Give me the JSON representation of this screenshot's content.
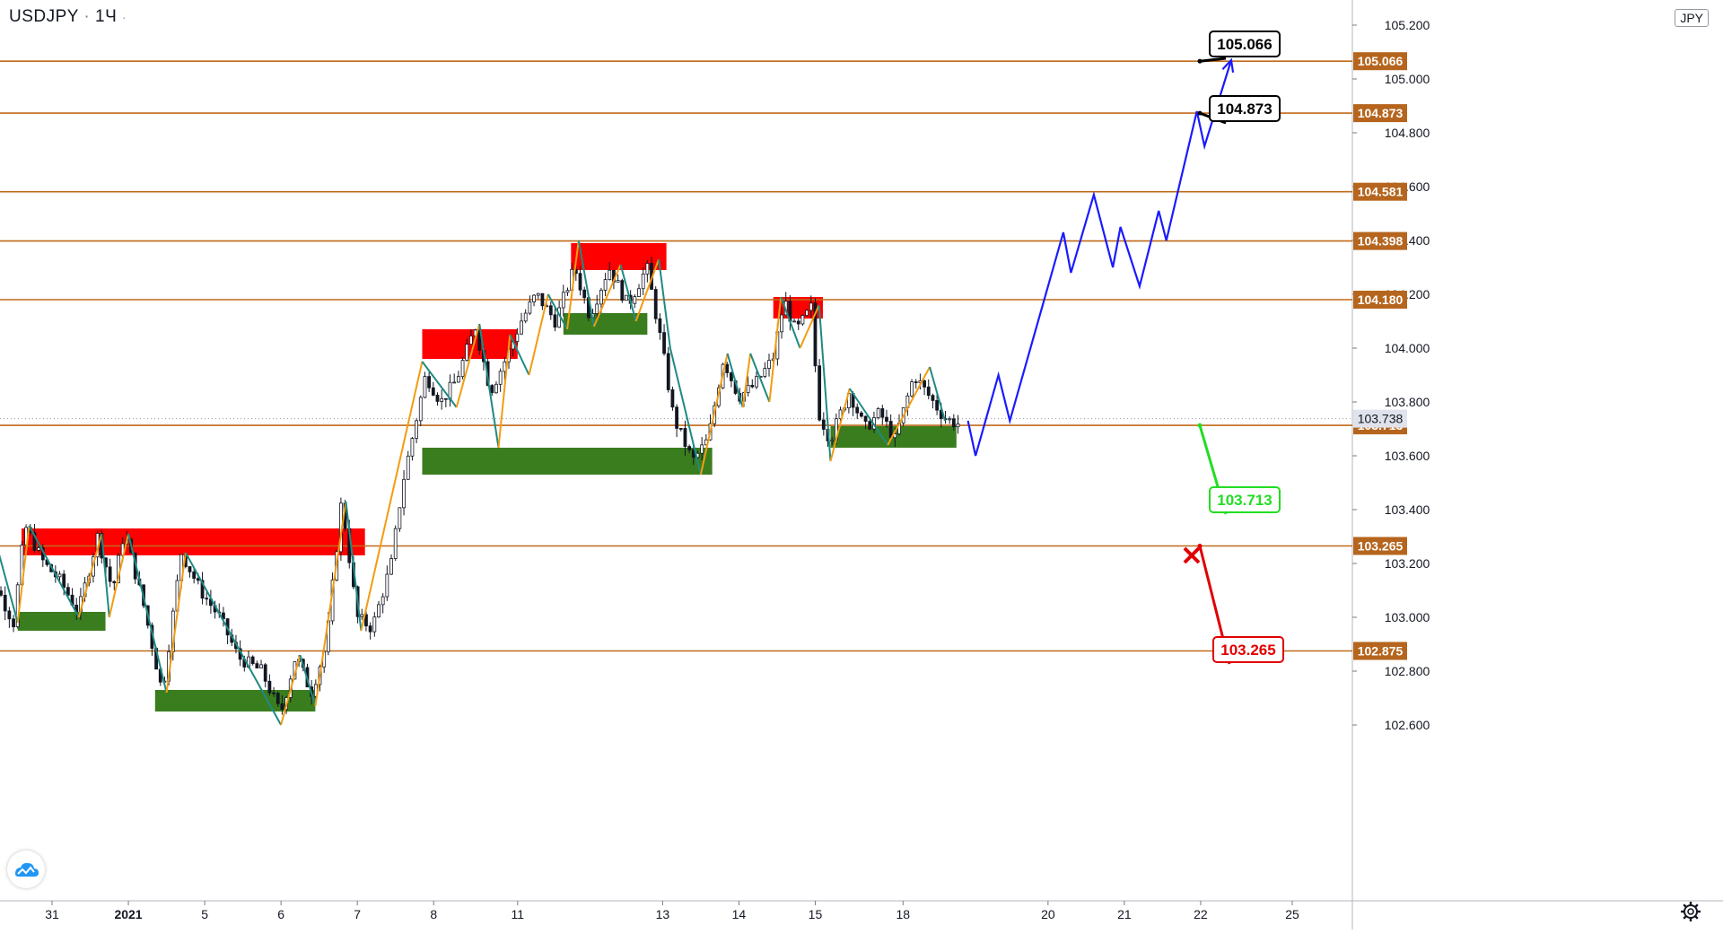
{
  "header": {
    "symbol": "USDJPY",
    "separator": "·",
    "interval": "1Ч"
  },
  "currency_badge": "JPY",
  "colors": {
    "level_line": "#c06a1a",
    "level_label_bg": "#b5651d",
    "supply_zone": "#ff0000",
    "demand_zone": "#3a7d1e",
    "forecast": "#1a1aff",
    "zigzag_up": "#f39c12",
    "zigzag_down": "#1e8a83",
    "candle": "#131722",
    "target_green": "#22dd22",
    "stop_red": "#e00000"
  },
  "icons": {
    "logo": "tradingview-cloud-icon",
    "settings": "gear-icon",
    "stop": "x-mark-icon"
  },
  "chart_data": {
    "type": "candlestick",
    "title": "USDJPY · 1Ч",
    "ylim": [
      102.58,
      105.25
    ],
    "yticks": [
      "105.200",
      "105.000",
      "104.800",
      "104.600",
      "104.400",
      "104.200",
      "104.000",
      "103.800",
      "103.600",
      "103.400",
      "103.200",
      "103.000",
      "102.800",
      "102.600"
    ],
    "xticks": [
      {
        "label": "31",
        "t": 0.95
      },
      {
        "label": "2021",
        "t": 1.95,
        "bold": true
      },
      {
        "label": "5",
        "t": 2.95
      },
      {
        "label": "6",
        "t": 3.95
      },
      {
        "label": "7",
        "t": 4.95
      },
      {
        "label": "8",
        "t": 5.95
      },
      {
        "label": "11",
        "t": 7.05
      },
      {
        "label": "13",
        "t": 8.95
      },
      {
        "label": "14",
        "t": 9.95
      },
      {
        "label": "15",
        "t": 10.95
      },
      {
        "label": "18",
        "t": 12.1
      },
      {
        "label": "20",
        "t": 14.0
      },
      {
        "label": "21",
        "t": 15.0
      },
      {
        "label": "22",
        "t": 16.0
      },
      {
        "label": "25",
        "t": 17.2
      }
    ],
    "levels": [
      {
        "price": 105.066,
        "label": "105.066"
      },
      {
        "price": 104.873,
        "label": "104.873"
      },
      {
        "price": 104.581,
        "label": "104.581"
      },
      {
        "price": 104.398,
        "label": "104.398"
      },
      {
        "price": 104.18,
        "label": "104.180"
      },
      {
        "price": 103.713,
        "label": "103.713"
      },
      {
        "price": 103.265,
        "label": "103.265"
      },
      {
        "price": 102.875,
        "label": "102.875"
      }
    ],
    "current_price": {
      "price": 103.738,
      "label": "103.738"
    },
    "zones": [
      {
        "type": "supply",
        "t0": 0.55,
        "t1": 5.05,
        "p0": 103.23,
        "p1": 103.33
      },
      {
        "type": "demand",
        "t0": 0.5,
        "t1": 1.65,
        "p0": 102.95,
        "p1": 103.02
      },
      {
        "type": "demand",
        "t0": 2.3,
        "t1": 4.4,
        "p0": 102.65,
        "p1": 102.73
      },
      {
        "type": "supply",
        "t0": 5.8,
        "t1": 7.05,
        "p0": 103.96,
        "p1": 104.07
      },
      {
        "type": "demand",
        "t0": 5.8,
        "t1": 9.6,
        "p0": 103.53,
        "p1": 103.63
      },
      {
        "type": "supply",
        "t0": 7.75,
        "t1": 9.0,
        "p0": 104.29,
        "p1": 104.39
      },
      {
        "type": "demand",
        "t0": 7.65,
        "t1": 8.75,
        "p0": 104.05,
        "p1": 104.13
      },
      {
        "type": "supply",
        "t0": 10.4,
        "t1": 11.05,
        "p0": 104.11,
        "p1": 104.19
      },
      {
        "type": "demand",
        "t0": 11.15,
        "t1": 12.8,
        "p0": 103.63,
        "p1": 103.71
      }
    ],
    "price_path": [
      [
        -0.05,
        103.3
      ],
      [
        0.3,
        103.1
      ],
      [
        0.5,
        102.98
      ],
      [
        0.65,
        103.34
      ],
      [
        0.9,
        103.2
      ],
      [
        1.1,
        103.14
      ],
      [
        1.35,
        103.02
      ],
      [
        1.6,
        103.3
      ],
      [
        1.8,
        103.1
      ],
      [
        1.95,
        103.32
      ],
      [
        2.2,
        103.05
      ],
      [
        2.45,
        102.72
      ],
      [
        2.7,
        103.24
      ],
      [
        2.95,
        103.1
      ],
      [
        3.2,
        103.0
      ],
      [
        3.45,
        102.85
      ],
      [
        3.75,
        102.8
      ],
      [
        4.0,
        102.64
      ],
      [
        4.2,
        102.86
      ],
      [
        4.4,
        102.72
      ],
      [
        4.6,
        102.9
      ],
      [
        4.8,
        103.44
      ],
      [
        5.0,
        103.0
      ],
      [
        5.2,
        102.96
      ],
      [
        5.45,
        103.2
      ],
      [
        5.6,
        103.5
      ],
      [
        5.75,
        103.7
      ],
      [
        5.9,
        103.9
      ],
      [
        6.1,
        103.8
      ],
      [
        6.3,
        103.88
      ],
      [
        6.55,
        104.08
      ],
      [
        6.75,
        103.84
      ],
      [
        6.95,
        103.96
      ],
      [
        7.15,
        104.1
      ],
      [
        7.35,
        104.2
      ],
      [
        7.6,
        104.1
      ],
      [
        7.85,
        104.3
      ],
      [
        8.05,
        104.12
      ],
      [
        8.3,
        104.3
      ],
      [
        8.55,
        104.16
      ],
      [
        8.8,
        104.3
      ],
      [
        9.0,
        104.0
      ],
      [
        9.15,
        103.74
      ],
      [
        9.4,
        103.58
      ],
      [
        9.6,
        103.66
      ],
      [
        9.8,
        103.96
      ],
      [
        10.0,
        103.82
      ],
      [
        10.2,
        103.86
      ],
      [
        10.45,
        103.96
      ],
      [
        10.6,
        104.18
      ],
      [
        10.75,
        104.06
      ],
      [
        10.95,
        104.15
      ],
      [
        11.05,
        103.76
      ],
      [
        11.2,
        103.66
      ],
      [
        11.45,
        103.84
      ],
      [
        11.65,
        103.7
      ],
      [
        11.85,
        103.76
      ],
      [
        12.05,
        103.66
      ],
      [
        12.3,
        103.9
      ],
      [
        12.5,
        103.82
      ],
      [
        12.7,
        103.74
      ],
      [
        12.85,
        103.72
      ]
    ],
    "zigzag": [
      [
        0.0,
        103.5
      ],
      [
        0.5,
        102.98
      ],
      [
        0.65,
        103.34
      ],
      [
        1.3,
        103.0
      ],
      [
        1.6,
        103.31
      ],
      [
        1.7,
        103.0
      ],
      [
        1.95,
        103.31
      ],
      [
        2.45,
        102.72
      ],
      [
        2.7,
        103.24
      ],
      [
        3.95,
        102.6
      ],
      [
        4.2,
        102.86
      ],
      [
        4.4,
        102.67
      ],
      [
        4.8,
        103.43
      ],
      [
        5.0,
        102.95
      ],
      [
        5.8,
        103.95
      ],
      [
        6.25,
        103.78
      ],
      [
        6.55,
        104.09
      ],
      [
        6.8,
        103.63
      ],
      [
        6.95,
        104.05
      ],
      [
        7.2,
        103.9
      ],
      [
        7.45,
        104.2
      ],
      [
        7.7,
        104.07
      ],
      [
        7.85,
        104.4
      ],
      [
        8.05,
        104.08
      ],
      [
        8.4,
        104.31
      ],
      [
        8.6,
        104.1
      ],
      [
        8.9,
        104.33
      ],
      [
        9.05,
        104.0
      ],
      [
        9.45,
        103.53
      ],
      [
        9.8,
        103.98
      ],
      [
        10.0,
        103.78
      ],
      [
        10.1,
        103.98
      ],
      [
        10.35,
        103.8
      ],
      [
        10.5,
        104.19
      ],
      [
        10.75,
        104.0
      ],
      [
        11.0,
        104.16
      ],
      [
        11.15,
        103.58
      ],
      [
        11.4,
        103.85
      ],
      [
        11.9,
        103.64
      ],
      [
        12.45,
        103.93
      ],
      [
        12.65,
        103.73
      ]
    ],
    "forecast_path": [
      [
        12.95,
        103.73
      ],
      [
        13.05,
        103.6
      ],
      [
        13.35,
        103.9
      ],
      [
        13.5,
        103.73
      ],
      [
        14.2,
        104.43
      ],
      [
        14.3,
        104.28
      ],
      [
        14.6,
        104.57
      ],
      [
        14.85,
        104.3
      ],
      [
        14.95,
        104.45
      ],
      [
        15.2,
        104.23
      ],
      [
        15.45,
        104.51
      ],
      [
        15.55,
        104.4
      ],
      [
        15.95,
        104.88
      ],
      [
        16.05,
        104.75
      ],
      [
        16.4,
        105.07
      ]
    ],
    "callouts": [
      {
        "label": "105.066",
        "price": 105.066,
        "style": "black"
      },
      {
        "label": "104.873",
        "price": 104.873,
        "style": "black"
      },
      {
        "label": "103.713",
        "price": 103.713,
        "style": "green"
      },
      {
        "label": "103.265",
        "price": 103.265,
        "style": "red"
      }
    ]
  }
}
